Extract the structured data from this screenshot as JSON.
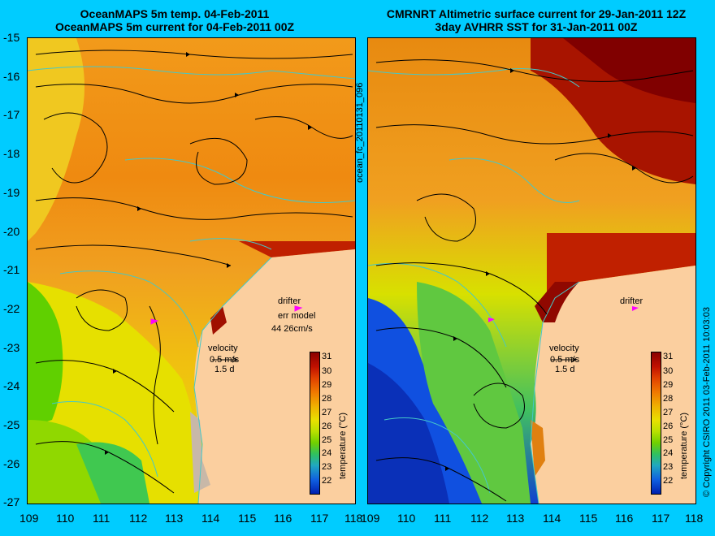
{
  "left_panel": {
    "title_line1": "OceanMAPS 5m temp. 04-Feb-2011",
    "title_line2": "OceanMAPS 5m current for 04-Feb-2011 00Z",
    "drifter_label": "drifter",
    "model_label_line1": "err model",
    "model_label_line2": "44 26cm/s",
    "velocity_label": "velocity",
    "velocity_scale": "0.5 m/s",
    "velocity_days": "1.5 d"
  },
  "right_panel": {
    "title_line1": "CMRNRT Altimetric surface current for 29-Jan-2011 12Z",
    "title_line2": "3day AVHRR SST for 31-Jan-2011 00Z",
    "drifter_label": "drifter",
    "velocity_label": "velocity",
    "velocity_scale": "0.5 m/s",
    "velocity_days": "1.5 d"
  },
  "colorbar": {
    "label": "temperature (°C)",
    "ticks": [
      "31",
      "30",
      "29",
      "28",
      "27",
      "26",
      "25",
      "24",
      "23",
      "22"
    ],
    "colors": [
      "#8a0000",
      "#c01000",
      "#e04000",
      "#f07800",
      "#f0b000",
      "#e8e000",
      "#b8e000",
      "#70d000",
      "#30c060",
      "#20a8c0",
      "#1060e0",
      "#0020b0"
    ]
  },
  "axes": {
    "y_labels": [
      "-15",
      "-16",
      "-17",
      "-18",
      "-19",
      "-20",
      "-21",
      "-22",
      "-23",
      "-24",
      "-25",
      "-26",
      "-27"
    ],
    "x_labels": [
      "109",
      "110",
      "111",
      "112",
      "113",
      "114",
      "115",
      "116",
      "117",
      "118"
    ]
  },
  "side_labels": {
    "run_id": "ocean_fc_20110131_096",
    "copyright": "© Copyright CSIRO 2011  03-Feb-2011 10:03:03"
  },
  "colors": {
    "background": "#00ccff",
    "land": "#fbcf9f",
    "coast": "#45c8c8",
    "drifter": "#ff00ff"
  }
}
